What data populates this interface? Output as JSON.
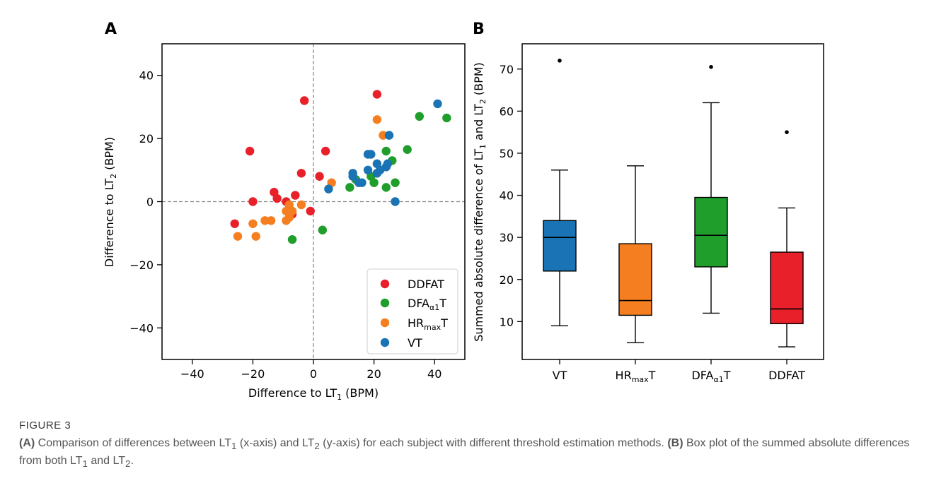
{
  "caption": {
    "label": "FIGURE 3",
    "part_a_tag": "(A)",
    "part_a_text": "Comparison of differences between LT",
    "part_a_text_2": " (x-axis) and LT",
    "part_a_text_3": " (y-axis) for each subject with different threshold estimation methods.",
    "part_b_tag": "(B)",
    "part_b_text": "Box plot of the summed absolute differences from both LT",
    "part_b_text_2": " and LT",
    "part_b_end": ".",
    "sub1": "1",
    "sub2": "2"
  },
  "colors": {
    "DDFAT": "#e8202a",
    "DFA": "#1f9e2c",
    "HRmax": "#f57f20",
    "VT": "#1a73b4"
  },
  "chart_data": [
    {
      "panel": "A",
      "type": "scatter",
      "xlabel": "Difference to LT1 (BPM)",
      "ylabel": "Difference to LT2 (BPM)",
      "xlim": [
        -50,
        50
      ],
      "ylim": [
        -50,
        50
      ],
      "xticks": [
        -40,
        -20,
        0,
        20,
        40
      ],
      "yticks": [
        -40,
        -20,
        0,
        20,
        40
      ],
      "reference_lines": {
        "x": 0,
        "y": 0
      },
      "legend_position": "lower-right",
      "series": [
        {
          "name": "DDFAT",
          "color": "#e8202a",
          "points": [
            [
              -26,
              -7
            ],
            [
              -21,
              16
            ],
            [
              -20,
              0
            ],
            [
              -13,
              3
            ],
            [
              -12,
              1
            ],
            [
              -9,
              0
            ],
            [
              -7,
              -4
            ],
            [
              -6,
              2
            ],
            [
              -4,
              9
            ],
            [
              -3,
              32
            ],
            [
              -1,
              -3
            ],
            [
              2,
              8
            ],
            [
              4,
              16
            ],
            [
              21,
              34
            ]
          ]
        },
        {
          "name": "DFAα1T",
          "color": "#1f9e2c",
          "points": [
            [
              -7,
              -12
            ],
            [
              3,
              -9
            ],
            [
              12,
              4.5
            ],
            [
              14,
              7
            ],
            [
              19,
              8
            ],
            [
              20,
              6
            ],
            [
              21,
              9
            ],
            [
              24,
              4.5
            ],
            [
              24,
              16
            ],
            [
              26,
              13
            ],
            [
              27,
              6
            ],
            [
              31,
              16.5
            ],
            [
              35,
              27
            ],
            [
              44,
              26.5
            ]
          ]
        },
        {
          "name": "HRmaxT",
          "color": "#f57f20",
          "points": [
            [
              -25,
              -11
            ],
            [
              -20,
              -7
            ],
            [
              -19,
              -11
            ],
            [
              -16,
              -6
            ],
            [
              -14,
              -6
            ],
            [
              -9,
              -6
            ],
            [
              -9,
              -3
            ],
            [
              -8,
              -5
            ],
            [
              -8,
              -1
            ],
            [
              -7,
              -3
            ],
            [
              -4,
              -1
            ],
            [
              6,
              6
            ],
            [
              21,
              26
            ],
            [
              23,
              21
            ]
          ]
        },
        {
          "name": "VT",
          "color": "#1a73b4",
          "points": [
            [
              5,
              4
            ],
            [
              13,
              9
            ],
            [
              13,
              8
            ],
            [
              15,
              6
            ],
            [
              16,
              6
            ],
            [
              18,
              10
            ],
            [
              18,
              15
            ],
            [
              19,
              15
            ],
            [
              21,
              12
            ],
            [
              21,
              9
            ],
            [
              22,
              10
            ],
            [
              24,
              11
            ],
            [
              24.5,
              12
            ],
            [
              25,
              21
            ],
            [
              27,
              0
            ],
            [
              41,
              31
            ]
          ]
        }
      ]
    },
    {
      "panel": "B",
      "type": "box",
      "ylabel": "Summed absolute difference of LT1 and LT2 (BPM)",
      "ylim": [
        1,
        76
      ],
      "yticks": [
        10,
        20,
        30,
        40,
        50,
        60,
        70
      ],
      "categories": [
        "VT",
        "HRmaxT",
        "DFAα1T",
        "DDFAT"
      ],
      "boxes": [
        {
          "name": "VT",
          "color": "#1a73b4",
          "whisker_low": 9,
          "q1": 22,
          "median": 30,
          "q3": 34,
          "whisker_high": 46,
          "outliers": [
            72
          ]
        },
        {
          "name": "HRmaxT",
          "color": "#f57f20",
          "whisker_low": 5,
          "q1": 11.5,
          "median": 15,
          "q3": 28.5,
          "whisker_high": 47,
          "outliers": []
        },
        {
          "name": "DFAα1T",
          "color": "#1f9e2c",
          "whisker_low": 12,
          "q1": 23,
          "median": 30.5,
          "q3": 39.5,
          "whisker_high": 62,
          "outliers": [
            70.5
          ]
        },
        {
          "name": "DDFAT",
          "color": "#e8202a",
          "whisker_low": 4,
          "q1": 9.5,
          "median": 13,
          "q3": 26.5,
          "whisker_high": 37,
          "outliers": [
            55
          ]
        }
      ]
    }
  ],
  "panel_labels": {
    "a": "A",
    "b": "B"
  },
  "axis_text": {
    "lt_word": "LT",
    "a_xlabel_prefix": "Difference to ",
    "a_xlabel_suffix": " (BPM)",
    "a_ylabel_prefix": "Difference to ",
    "a_ylabel_suffix": " (BPM)",
    "b_ylabel_prefix": "Summed absolute difference of ",
    "b_ylabel_mid": " and ",
    "b_ylabel_suffix": " (BPM)",
    "sub1": "1",
    "sub2": "2"
  },
  "legend": [
    {
      "key": "DDFAT",
      "main": "DDFAT",
      "sub": "",
      "tail": ""
    },
    {
      "key": "DFA",
      "main": "DFA",
      "sub": "α1",
      "tail": "T"
    },
    {
      "key": "HRmax",
      "main": "HR",
      "sub": "max",
      "tail": "T"
    },
    {
      "key": "VT",
      "main": "VT",
      "sub": "",
      "tail": ""
    }
  ],
  "b_tick_labels": [
    {
      "main": "VT",
      "sub": "",
      "tail": ""
    },
    {
      "main": "HR",
      "sub": "max",
      "tail": "T"
    },
    {
      "main": "DFA",
      "sub": "α1",
      "tail": "T"
    },
    {
      "main": "DDFAT",
      "sub": "",
      "tail": ""
    }
  ]
}
